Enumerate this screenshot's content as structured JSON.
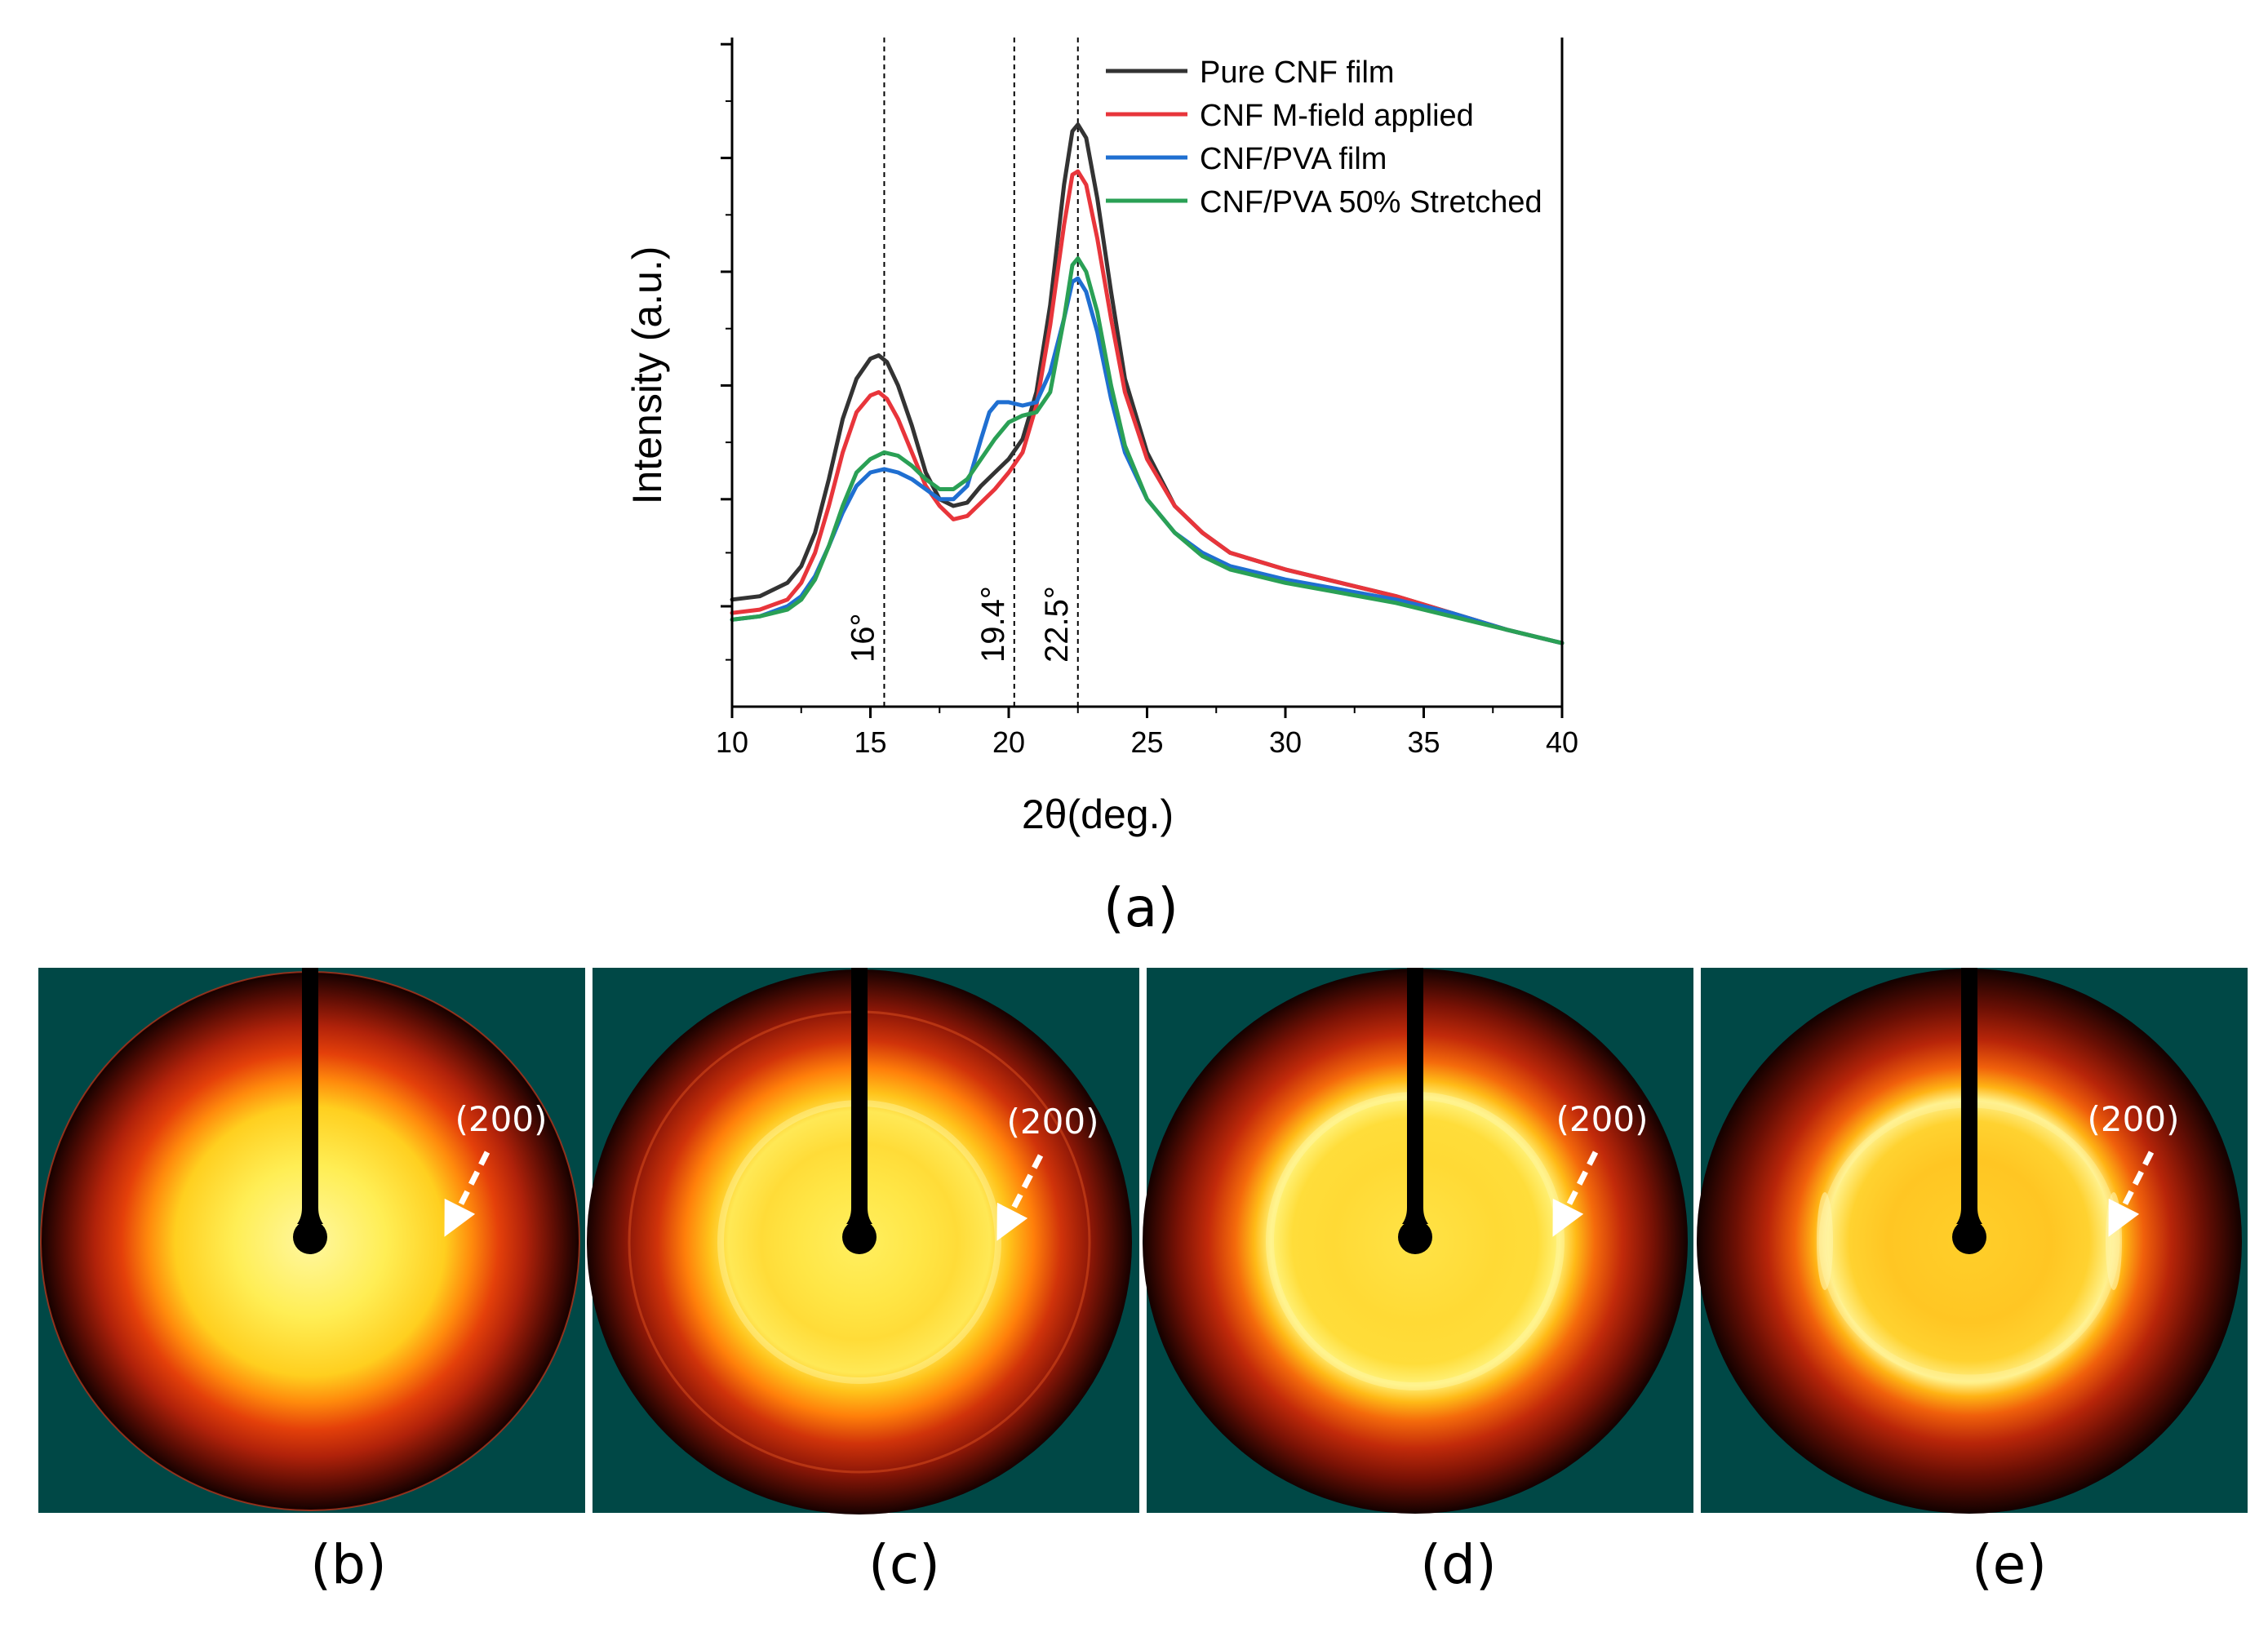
{
  "chart_data": {
    "type": "line",
    "xlabel": "2θ(deg.)",
    "ylabel": "Intensity (a.u.)",
    "xlim": [
      10,
      40
    ],
    "ylim": [
      0,
      100
    ],
    "xticks": [
      10,
      15,
      20,
      25,
      30,
      35,
      40
    ],
    "yticks_unlabeled": [
      15,
      31,
      48,
      65,
      82,
      99
    ],
    "reference_lines": [
      {
        "x": 15.5,
        "label": "16°"
      },
      {
        "x": 20.2,
        "label": "19.4°"
      },
      {
        "x": 22.5,
        "label": "22.5°"
      }
    ],
    "legend_position": "top-right",
    "series": [
      {
        "name": "Pure CNF film",
        "color": "#333333",
        "x": [
          10,
          11,
          12,
          12.5,
          13,
          13.5,
          14,
          14.5,
          15,
          15.3,
          15.6,
          16,
          16.5,
          17,
          17.5,
          18,
          18.5,
          19,
          19.5,
          20,
          20.5,
          21,
          21.5,
          22,
          22.3,
          22.5,
          22.8,
          23.2,
          23.7,
          24.2,
          25,
          26,
          27,
          28,
          30,
          32,
          34,
          36,
          38,
          40
        ],
        "y": [
          16,
          16.5,
          18.5,
          21,
          26,
          34,
          43,
          49,
          52,
          52.5,
          51.5,
          48,
          42,
          35,
          31,
          30,
          30.5,
          33,
          35,
          37,
          40,
          47,
          60,
          78,
          86,
          87,
          85,
          76,
          62,
          49,
          38,
          30,
          26,
          23,
          20.5,
          18.5,
          16.5,
          14,
          11.5,
          9.5
        ]
      },
      {
        "name": "CNF M-field applied",
        "color": "#e8353b",
        "x": [
          10,
          11,
          12,
          12.5,
          13,
          13.5,
          14,
          14.5,
          15,
          15.3,
          15.6,
          16,
          16.5,
          17,
          17.5,
          18,
          18.5,
          19,
          19.5,
          20,
          20.5,
          21,
          21.5,
          22,
          22.3,
          22.5,
          22.8,
          23.2,
          23.7,
          24.2,
          25,
          26,
          27,
          28,
          30,
          32,
          34,
          36,
          38,
          40
        ],
        "y": [
          14,
          14.5,
          16,
          18.5,
          23,
          30,
          38,
          44,
          46.5,
          47,
          46,
          43,
          38,
          33,
          30,
          28,
          28.5,
          30.5,
          32.5,
          35,
          38,
          45,
          57,
          72,
          79.5,
          80,
          78,
          70,
          58,
          47,
          37,
          30,
          26,
          23,
          20.5,
          18.5,
          16.5,
          14,
          11.5,
          9.5
        ]
      },
      {
        "name": "CNF/PVA film",
        "color": "#1f6fd1",
        "x": [
          10,
          11,
          12,
          12.5,
          13,
          13.5,
          14,
          14.5,
          15,
          15.5,
          16,
          16.5,
          17,
          17.5,
          18,
          18.5,
          19,
          19.3,
          19.6,
          20,
          20.5,
          21,
          21.5,
          22,
          22.3,
          22.5,
          22.8,
          23.2,
          23.7,
          24.2,
          25,
          26,
          27,
          28,
          30,
          32,
          34,
          36,
          38,
          40
        ],
        "y": [
          13,
          13.5,
          15,
          16.5,
          19.5,
          24,
          29,
          33,
          35,
          35.5,
          35,
          34,
          32.5,
          31,
          31,
          33,
          40,
          44,
          45.5,
          45.5,
          45,
          45.5,
          50,
          58,
          63.5,
          64,
          62,
          56,
          46,
          38,
          31,
          26,
          23,
          21,
          19,
          17.5,
          16,
          14,
          11.5,
          9.5
        ]
      },
      {
        "name": "CNF/PVA 50% Stretched",
        "color": "#2aa055",
        "x": [
          10,
          11,
          12,
          12.5,
          13,
          13.5,
          14,
          14.5,
          15,
          15.5,
          16,
          16.5,
          17,
          17.5,
          18,
          18.5,
          19,
          19.5,
          20,
          20.5,
          21,
          21.5,
          22,
          22.3,
          22.5,
          22.8,
          23.2,
          23.7,
          24.2,
          25,
          26,
          27,
          28,
          30,
          32,
          34,
          36,
          38,
          40
        ],
        "y": [
          13,
          13.5,
          14.5,
          16,
          19,
          24,
          30,
          35,
          37,
          38,
          37.5,
          36,
          34,
          32.5,
          32.5,
          34,
          37,
          40,
          42.5,
          43.5,
          44,
          47,
          58,
          66,
          67,
          65,
          59,
          48,
          39,
          31,
          26,
          22.5,
          20.5,
          18.5,
          17,
          15.5,
          13.5,
          11.5,
          9.5
        ]
      }
    ]
  },
  "captions": {
    "a": "(a)",
    "b": "(b)",
    "c": "(c)",
    "d": "(d)",
    "e": "(e)"
  },
  "panels": [
    {
      "id": "b",
      "annotation": "(200)",
      "variant": "diffuse"
    },
    {
      "id": "c",
      "annotation": "(200)",
      "variant": "ring-faint"
    },
    {
      "id": "d",
      "annotation": "(200)",
      "variant": "ring"
    },
    {
      "id": "e",
      "annotation": "(200)",
      "variant": "ring-oriented"
    }
  ],
  "colors": {
    "panel_background": "#004846",
    "annotation": "#ffffff"
  }
}
